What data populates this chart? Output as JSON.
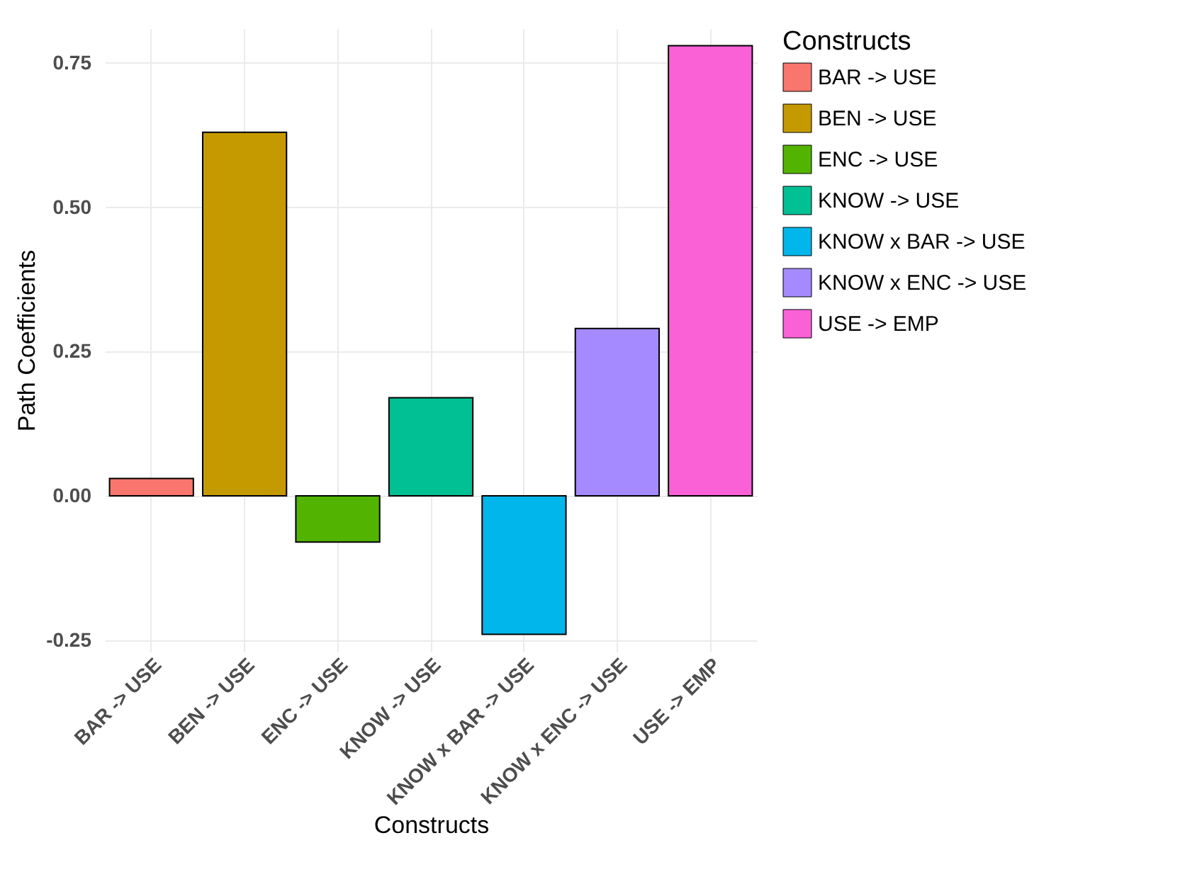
{
  "chart_data": {
    "type": "bar",
    "xlabel": "Constructs",
    "ylabel": "Path Coefficients",
    "legend_title": "Constructs",
    "categories": [
      "BAR -> USE",
      "BEN -> USE",
      "ENC -> USE",
      "KNOW -> USE",
      "KNOW x BAR -> USE",
      "KNOW x ENC -> USE",
      "USE -> EMP"
    ],
    "series": [
      {
        "name": "BAR -> USE",
        "color": "#f8766d",
        "values": [
          0.03,
          null,
          null,
          null,
          null,
          null,
          null
        ]
      },
      {
        "name": "BEN -> USE",
        "color": "#c49a00",
        "values": [
          null,
          0.63,
          null,
          null,
          null,
          null,
          null
        ]
      },
      {
        "name": "ENC -> USE",
        "color": "#53b400",
        "values": [
          null,
          null,
          -0.08,
          null,
          null,
          null,
          null
        ]
      },
      {
        "name": "KNOW -> USE",
        "color": "#00c094",
        "values": [
          null,
          null,
          null,
          0.17,
          null,
          null,
          null
        ]
      },
      {
        "name": "KNOW x BAR -> USE",
        "color": "#00b6eb",
        "values": [
          null,
          null,
          null,
          null,
          -0.24,
          null,
          null
        ]
      },
      {
        "name": "KNOW x ENC -> USE",
        "color": "#a58aff",
        "values": [
          null,
          null,
          null,
          null,
          null,
          0.29,
          null
        ]
      },
      {
        "name": "USE -> EMP",
        "color": "#fb61d7",
        "values": [
          null,
          null,
          null,
          null,
          null,
          null,
          0.78
        ]
      }
    ],
    "ylim": [
      -0.27,
      0.81
    ],
    "yticks": [
      {
        "value": -0.25,
        "label": "-0.25"
      },
      {
        "value": 0,
        "label": "0.00"
      },
      {
        "value": 0.25,
        "label": "0.25"
      },
      {
        "value": 0.5,
        "label": "0.50"
      },
      {
        "value": 0.75,
        "label": "0.75"
      }
    ],
    "grid": true,
    "legend": "right"
  }
}
